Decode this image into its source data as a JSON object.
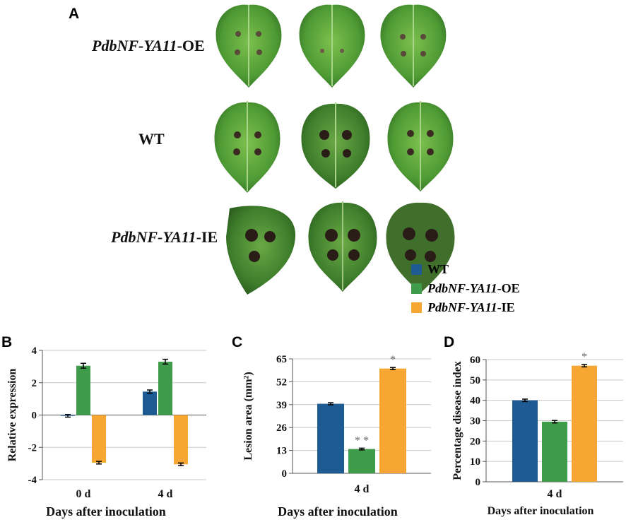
{
  "panels": {
    "a": "A",
    "b": "B",
    "c": "C",
    "d": "D"
  },
  "row_labels": {
    "oe": {
      "italic": "PdbNF-YA11",
      "suffix": "-OE"
    },
    "wt": {
      "text": "WT"
    },
    "ie": {
      "italic": "PdbNF-YA11",
      "suffix": "-IE"
    }
  },
  "legend": [
    {
      "italic": "",
      "suffix": "WT",
      "color": "#1f5b93"
    },
    {
      "italic": "PdbNF-YA11",
      "suffix": "-OE",
      "color": "#3e9c4a"
    },
    {
      "italic": "PdbNF-YA11",
      "suffix": "-IE",
      "color": "#f5a633"
    }
  ],
  "colors": {
    "wt": "#1f5b93",
    "oe": "#3e9c4a",
    "ie": "#f5a633",
    "leaf": "#5a9e3a",
    "lesion": "#3a2a22"
  },
  "chart_data": [
    {
      "id": "B",
      "type": "bar",
      "categories": [
        "0 d",
        "4 d"
      ],
      "series": [
        {
          "name": "WT",
          "values": [
            -0.05,
            1.45
          ],
          "errors": [
            0.08,
            0.1
          ]
        },
        {
          "name": "PdbNF-YA11-OE",
          "values": [
            3.05,
            3.3
          ],
          "errors": [
            0.15,
            0.15
          ]
        },
        {
          "name": "PdbNF-YA11-IE",
          "values": [
            -2.95,
            -3.05
          ],
          "errors": [
            0.08,
            0.08
          ]
        }
      ],
      "xlabel": "Days after inoculation",
      "ylabel": "Relative expression",
      "ylim": [
        -4,
        4
      ],
      "yticks": [
        "4",
        "2",
        "0",
        "-2",
        "-4"
      ],
      "yticks_values": [
        4,
        2,
        0,
        -2,
        -4
      ],
      "grid": true,
      "annotations": []
    },
    {
      "id": "C",
      "type": "bar",
      "categories": [
        "4 d"
      ],
      "series": [
        {
          "name": "WT",
          "values": [
            39.5
          ],
          "errors": [
            0.6
          ]
        },
        {
          "name": "PdbNF-YA11-OE",
          "values": [
            13.8
          ],
          "errors": [
            0.5
          ],
          "mark": "* *"
        },
        {
          "name": "PdbNF-YA11-IE",
          "values": [
            59.5
          ],
          "errors": [
            0.6
          ],
          "mark": "*"
        }
      ],
      "xlabel": "Days after inoculation",
      "ylabel": "Lesion area (mm²)",
      "ylim": [
        0,
        65
      ],
      "yticks": [
        "65",
        "52",
        "39",
        "26",
        "13",
        "0"
      ],
      "yticks_values": [
        65,
        52,
        39,
        26,
        13,
        0
      ],
      "grid": true
    },
    {
      "id": "D",
      "type": "bar",
      "categories": [
        "4 d"
      ],
      "series": [
        {
          "name": "WT",
          "values": [
            40
          ],
          "errors": [
            0.6
          ]
        },
        {
          "name": "PdbNF-YA11-OE",
          "values": [
            29.5
          ],
          "errors": [
            0.6
          ]
        },
        {
          "name": "PdbNF-YA11-IE",
          "values": [
            57
          ],
          "errors": [
            0.6
          ],
          "mark": "*"
        }
      ],
      "xlabel": "Days after inoculation",
      "ylabel": "Percentage disease index",
      "ylim": [
        0,
        60
      ],
      "yticks": [
        "60",
        "50",
        "40",
        "30",
        "20",
        "10",
        "0"
      ],
      "yticks_values": [
        60,
        50,
        40,
        30,
        20,
        10,
        0
      ],
      "grid": true
    }
  ]
}
